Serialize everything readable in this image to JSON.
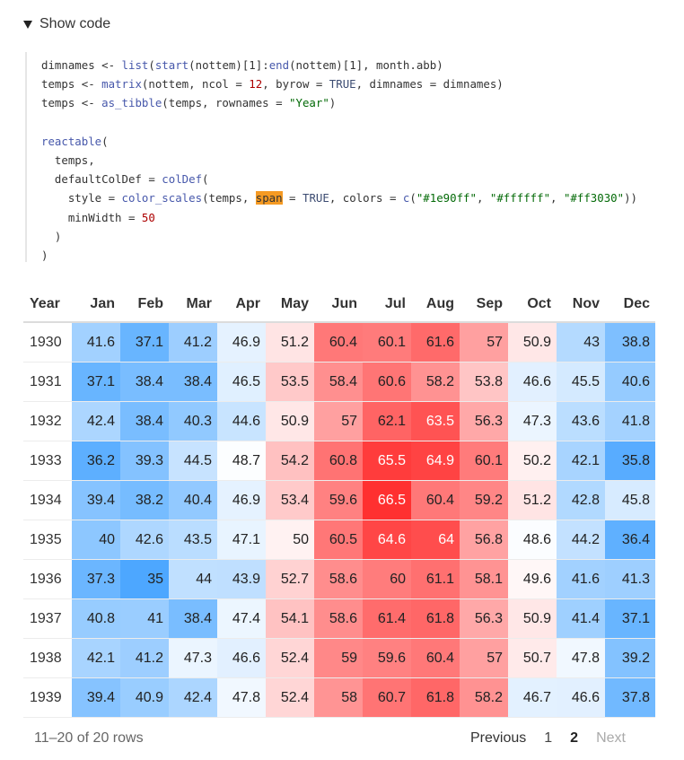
{
  "toggle": {
    "label": "Show code"
  },
  "code": {
    "lines": [
      [
        [
          "t",
          "dimnames <- "
        ],
        [
          "f",
          "list"
        ],
        [
          "t",
          "("
        ],
        [
          "f",
          "start"
        ],
        [
          "t",
          "(nottem)[1]:"
        ],
        [
          "f",
          "end"
        ],
        [
          "t",
          "(nottem)[1], month.abb)"
        ]
      ],
      [
        [
          "t",
          "temps <- "
        ],
        [
          "f",
          "matrix"
        ],
        [
          "t",
          "(nottem, ncol = "
        ],
        [
          "n",
          "12"
        ],
        [
          "t",
          ", byrow = "
        ],
        [
          "k",
          "TRUE"
        ],
        [
          "t",
          ", dimnames = dimnames)"
        ]
      ],
      [
        [
          "t",
          "temps <- "
        ],
        [
          "f",
          "as_tibble"
        ],
        [
          "t",
          "(temps, rownames = "
        ],
        [
          "s",
          "\"Year\""
        ],
        [
          "t",
          ")"
        ]
      ],
      [],
      [
        [
          "f",
          "reactable"
        ],
        [
          "t",
          "("
        ]
      ],
      [
        [
          "t",
          "  temps,"
        ]
      ],
      [
        [
          "t",
          "  defaultColDef = "
        ],
        [
          "f",
          "colDef"
        ],
        [
          "t",
          "("
        ]
      ],
      [
        [
          "t",
          "    style = "
        ],
        [
          "f",
          "color_scales"
        ],
        [
          "t",
          "(temps, "
        ],
        [
          "h",
          "span"
        ],
        [
          "t",
          " = "
        ],
        [
          "k",
          "TRUE"
        ],
        [
          "t",
          ", colors = "
        ],
        [
          "f",
          "c"
        ],
        [
          "t",
          "("
        ],
        [
          "s",
          "\"#1e90ff\""
        ],
        [
          "t",
          ", "
        ],
        [
          "s",
          "\"#ffffff\""
        ],
        [
          "t",
          ", "
        ],
        [
          "s",
          "\"#ff3030\""
        ],
        [
          "t",
          "))"
        ]
      ],
      [
        [
          "t",
          "    minWidth = "
        ],
        [
          "n",
          "50"
        ]
      ],
      [
        [
          "t",
          "  )"
        ]
      ],
      [
        [
          "t",
          ")"
        ]
      ]
    ]
  },
  "table": {
    "headers": [
      "Year",
      "Jan",
      "Feb",
      "Mar",
      "Apr",
      "May",
      "Jun",
      "Jul",
      "Aug",
      "Sep",
      "Oct",
      "Nov",
      "Dec"
    ],
    "rows": [
      [
        "1930",
        "41.6",
        "37.1",
        "41.2",
        "46.9",
        "51.2",
        "60.4",
        "60.1",
        "61.6",
        "57",
        "50.9",
        "43",
        "38.8"
      ],
      [
        "1931",
        "37.1",
        "38.4",
        "38.4",
        "46.5",
        "53.5",
        "58.4",
        "60.6",
        "58.2",
        "53.8",
        "46.6",
        "45.5",
        "40.6"
      ],
      [
        "1932",
        "42.4",
        "38.4",
        "40.3",
        "44.6",
        "50.9",
        "57",
        "62.1",
        "63.5",
        "56.3",
        "47.3",
        "43.6",
        "41.8"
      ],
      [
        "1933",
        "36.2",
        "39.3",
        "44.5",
        "48.7",
        "54.2",
        "60.8",
        "65.5",
        "64.9",
        "60.1",
        "50.2",
        "42.1",
        "35.8"
      ],
      [
        "1934",
        "39.4",
        "38.2",
        "40.4",
        "46.9",
        "53.4",
        "59.6",
        "66.5",
        "60.4",
        "59.2",
        "51.2",
        "42.8",
        "45.8"
      ],
      [
        "1935",
        "40",
        "42.6",
        "43.5",
        "47.1",
        "50",
        "60.5",
        "64.6",
        "64",
        "56.8",
        "48.6",
        "44.2",
        "36.4"
      ],
      [
        "1936",
        "37.3",
        "35",
        "44",
        "43.9",
        "52.7",
        "58.6",
        "60",
        "61.1",
        "58.1",
        "49.6",
        "41.6",
        "41.3"
      ],
      [
        "1937",
        "40.8",
        "41",
        "38.4",
        "47.4",
        "54.1",
        "58.6",
        "61.4",
        "61.8",
        "56.3",
        "50.9",
        "41.4",
        "37.1"
      ],
      [
        "1938",
        "42.1",
        "41.2",
        "47.3",
        "46.6",
        "52.4",
        "59",
        "59.6",
        "60.4",
        "57",
        "50.7",
        "47.8",
        "39.2"
      ],
      [
        "1939",
        "39.4",
        "40.9",
        "42.4",
        "47.8",
        "52.4",
        "58",
        "60.7",
        "61.8",
        "58.2",
        "46.7",
        "46.6",
        "37.8"
      ]
    ],
    "color_scale": {
      "low": "#1e90ff",
      "mid": "#ffffff",
      "high": "#ff3030",
      "min": 31.3,
      "max": 66.5
    }
  },
  "footer": {
    "row_info": "11–20 of 20 rows",
    "previous": "Previous",
    "page1": "1",
    "page2": "2",
    "next": "Next"
  }
}
